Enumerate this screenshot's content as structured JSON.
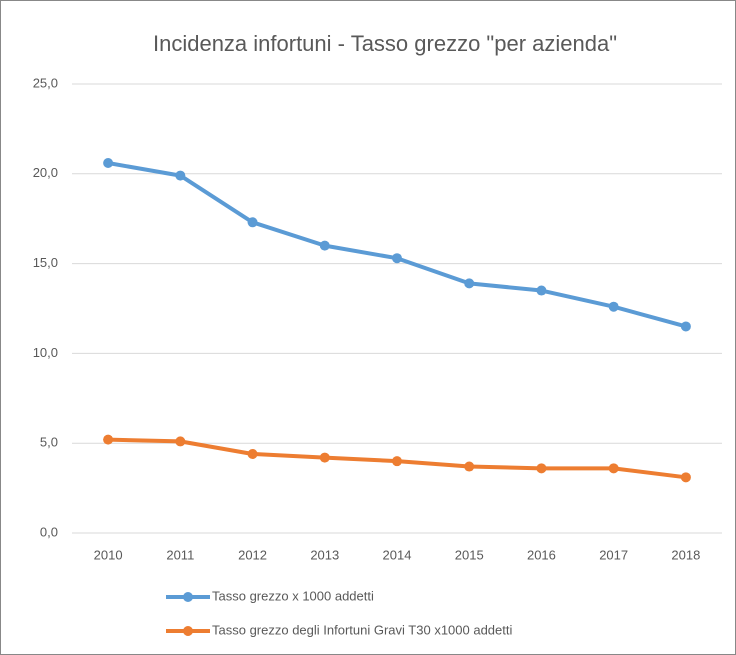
{
  "chart_data": {
    "type": "line",
    "title": "Incidenza infortuni - Tasso grezzo \"per azienda\"",
    "categories": [
      "2010",
      "2011",
      "2012",
      "2013",
      "2014",
      "2015",
      "2016",
      "2017",
      "2018"
    ],
    "series": [
      {
        "name": "Tasso grezzo x 1000 addetti",
        "color": "#5b9bd5",
        "values": [
          20.6,
          19.9,
          17.3,
          16.0,
          15.3,
          13.9,
          13.5,
          12.6,
          11.5
        ]
      },
      {
        "name": "Tasso grezzo degli Infortuni Gravi T30 x1000 addetti",
        "color": "#ed7d31",
        "values": [
          5.2,
          5.1,
          4.4,
          4.2,
          4.0,
          3.7,
          3.6,
          3.6,
          3.1
        ]
      }
    ],
    "ylim": [
      0,
      25
    ],
    "yticks": [
      {
        "value": 0,
        "label": "0,0"
      },
      {
        "value": 5,
        "label": "5,0"
      },
      {
        "value": 10,
        "label": "10,0"
      },
      {
        "value": 15,
        "label": "15,0"
      },
      {
        "value": 20,
        "label": "20,0"
      },
      {
        "value": 25,
        "label": "25,0"
      }
    ],
    "grid": true
  }
}
